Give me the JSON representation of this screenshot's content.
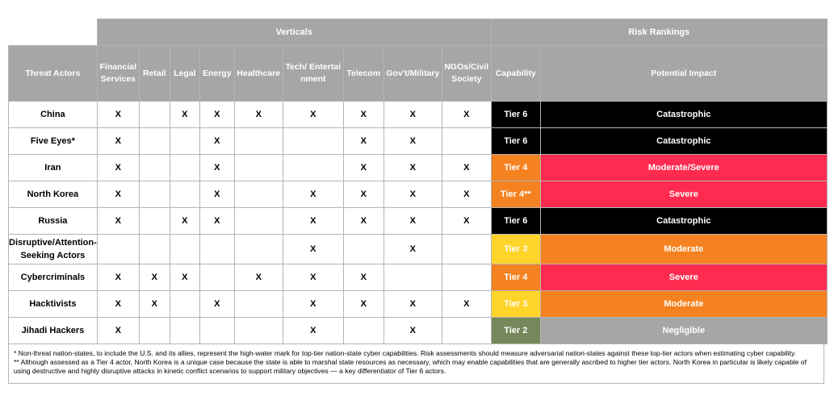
{
  "groups": {
    "verticals": "Verticals",
    "risk": "Risk Rankings"
  },
  "headers": {
    "threat_actors": "Threat Actors",
    "verticals": [
      "Financial Services",
      "Retail",
      "Legal",
      "Energy",
      "Healthcare",
      "Tech/ Entertainment",
      "Telecom",
      "Gov't/Military",
      "NGOs/Civil Society"
    ],
    "capability": "Capability",
    "impact": "Potential Impact"
  },
  "mark": "X",
  "rows": [
    {
      "actor": "China",
      "marks": [
        1,
        0,
        1,
        1,
        1,
        1,
        1,
        1,
        1
      ],
      "capability": "Tier 6",
      "impact": "Catastrophic",
      "cap_color": "#000000",
      "cap_text": "#ffffff",
      "impact_color": "#000000",
      "impact_text": "#ffffff"
    },
    {
      "actor": "Five Eyes*",
      "marks": [
        1,
        0,
        0,
        1,
        0,
        0,
        1,
        1,
        0
      ],
      "capability": "Tier 6",
      "impact": "Catastrophic",
      "cap_color": "#000000",
      "cap_text": "#ffffff",
      "impact_color": "#000000",
      "impact_text": "#ffffff"
    },
    {
      "actor": "Iran",
      "marks": [
        1,
        0,
        0,
        1,
        0,
        0,
        1,
        1,
        1
      ],
      "capability": "Tier 4",
      "impact": "Moderate/Severe",
      "cap_color": "#f58220",
      "cap_text": "#ffffff",
      "impact_color": "#ff2a4f",
      "impact_text": "#ffffff"
    },
    {
      "actor": "North Korea",
      "marks": [
        1,
        0,
        0,
        1,
        0,
        1,
        1,
        1,
        1
      ],
      "capability": "Tier 4**",
      "impact": "Severe",
      "cap_color": "#f58220",
      "cap_text": "#ffffff",
      "impact_color": "#ff2a4f",
      "impact_text": "#ffffff"
    },
    {
      "actor": "Russia",
      "marks": [
        1,
        0,
        1,
        1,
        0,
        1,
        1,
        1,
        1
      ],
      "capability": "Tier 6",
      "impact": "Catastrophic",
      "cap_color": "#000000",
      "cap_text": "#ffffff",
      "impact_color": "#000000",
      "impact_text": "#ffffff"
    },
    {
      "actor": "Disruptive/Attention-Seeking Actors",
      "marks": [
        0,
        0,
        0,
        0,
        0,
        1,
        0,
        1,
        0
      ],
      "capability": "Tier 3",
      "impact": "Moderate",
      "cap_color": "#ffd42a",
      "cap_text": "#ffffff",
      "impact_color": "#f58220",
      "impact_text": "#ffffff"
    },
    {
      "actor": "Cybercriminals",
      "marks": [
        1,
        1,
        1,
        0,
        1,
        1,
        1,
        0,
        0
      ],
      "capability": "Tier 4",
      "impact": "Severe",
      "cap_color": "#f58220",
      "cap_text": "#ffffff",
      "impact_color": "#ff2a4f",
      "impact_text": "#ffffff"
    },
    {
      "actor": "Hacktivists",
      "marks": [
        1,
        1,
        0,
        1,
        0,
        1,
        1,
        1,
        1
      ],
      "capability": "Tier 3",
      "impact": "Moderate",
      "cap_color": "#ffd42a",
      "cap_text": "#ffffff",
      "impact_color": "#f58220",
      "impact_text": "#ffffff"
    },
    {
      "actor": "Jihadi Hackers",
      "marks": [
        1,
        0,
        0,
        0,
        0,
        1,
        0,
        1,
        0
      ],
      "capability": "Tier 2",
      "impact": "Negligible",
      "cap_color": "#76885b",
      "cap_text": "#ffffff",
      "impact_color": "#a6a6a6",
      "impact_text": "#ffffff"
    }
  ],
  "footnotes": [
    "* Non-threat nation-states, to include the U.S. and its allies, represent the high-water mark for top-tier nation-state cyber capabilities. Risk assessments should measure adversarial nation-states against these top-tier actors when estimating cyber capability.",
    "** Although assessed as a Tier 4 actor, North Korea is a unique case because the state is able to marshal state resources as necessary, which may enable capabilities that are generally ascribed to higher tier actors. North Korea in particular is likely capable of using destructive and highly disruptive attacks in kinetic conflict scenarios to support military objectives — a key differentiator of Tier 6 actors."
  ]
}
